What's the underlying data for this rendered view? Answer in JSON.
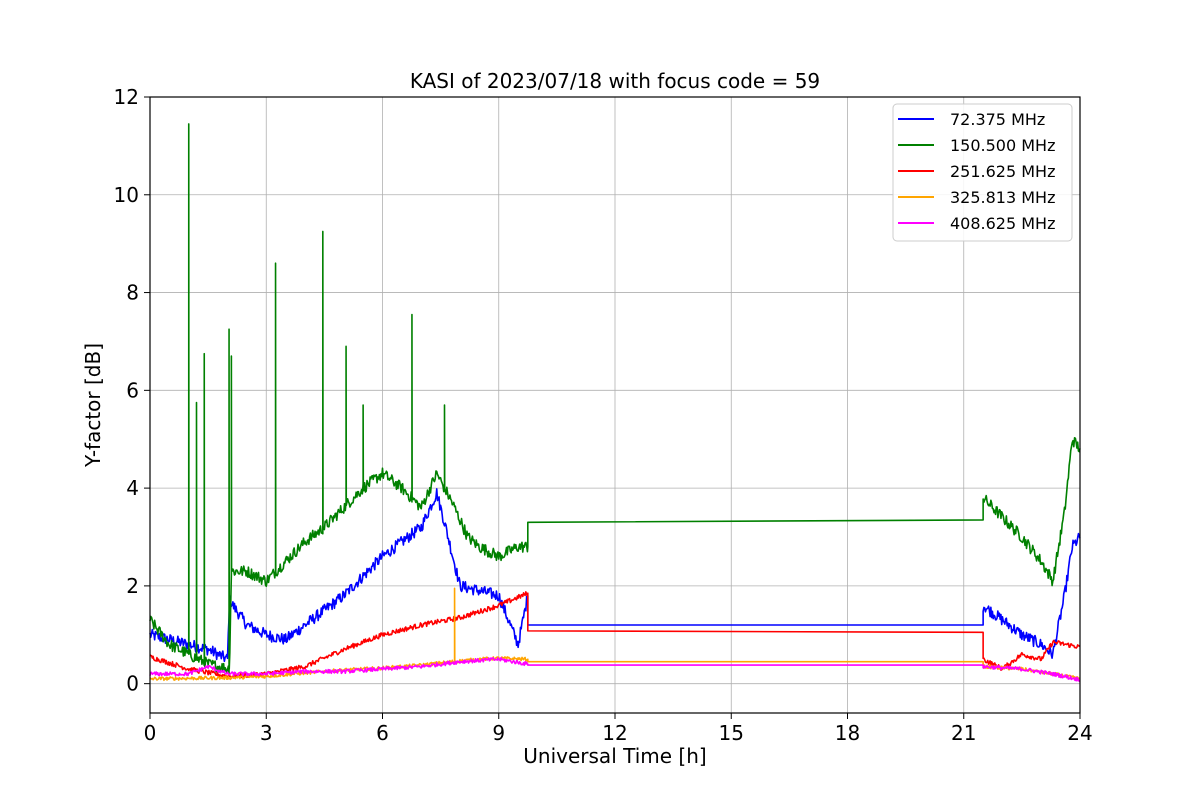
{
  "chart_data": {
    "type": "line",
    "title": "KASI of 2023/07/18 with focus code = 59",
    "xlabel": "Universal Time [h]",
    "ylabel": "Y-factor [dB]",
    "xlim": [
      0,
      24
    ],
    "ylim": [
      -0.6,
      12
    ],
    "xticks": [
      0,
      3,
      6,
      9,
      12,
      15,
      18,
      21,
      24
    ],
    "yticks": [
      0,
      2,
      4,
      6,
      8,
      10,
      12
    ],
    "grid": true,
    "legend_position": "top-right",
    "series": [
      {
        "name": " 72.375 MHz",
        "color": "#0000ff",
        "noise": 0.12,
        "gap": [
          9.75,
          21.5
        ],
        "points": [
          [
            0,
            1.0
          ],
          [
            0.5,
            0.9
          ],
          [
            1.0,
            0.8
          ],
          [
            1.5,
            0.7
          ],
          [
            2.0,
            0.5
          ],
          [
            2.05,
            1.7
          ],
          [
            2.5,
            1.2
          ],
          [
            3.0,
            1.0
          ],
          [
            3.5,
            0.9
          ],
          [
            4.0,
            1.2
          ],
          [
            4.5,
            1.5
          ],
          [
            5.0,
            1.8
          ],
          [
            5.5,
            2.2
          ],
          [
            6.0,
            2.6
          ],
          [
            6.5,
            2.9
          ],
          [
            7.0,
            3.2
          ],
          [
            7.4,
            3.9
          ],
          [
            7.6,
            3.3
          ],
          [
            8.0,
            2.0
          ],
          [
            8.5,
            1.9
          ],
          [
            9.0,
            1.8
          ],
          [
            9.5,
            0.8
          ],
          [
            9.75,
            1.8
          ],
          [
            9.75,
            1.2
          ],
          [
            21.5,
            1.2
          ],
          [
            21.5,
            1.6
          ],
          [
            22.0,
            1.3
          ],
          [
            22.5,
            1.0
          ],
          [
            23.0,
            0.8
          ],
          [
            23.3,
            0.6
          ],
          [
            23.6,
            1.8
          ],
          [
            23.8,
            2.8
          ],
          [
            24.0,
            3.0
          ]
        ]
      },
      {
        "name": "150.500 MHz",
        "color": "#008000",
        "noise": 0.12,
        "gap": [
          9.75,
          21.5
        ],
        "points": [
          [
            0,
            1.3
          ],
          [
            0.5,
            0.8
          ],
          [
            1.0,
            0.6
          ],
          [
            1.5,
            0.4
          ],
          [
            2.05,
            0.3
          ],
          [
            2.1,
            2.3
          ],
          [
            2.5,
            2.3
          ],
          [
            3.0,
            2.1
          ],
          [
            3.5,
            2.5
          ],
          [
            4.0,
            2.9
          ],
          [
            4.5,
            3.2
          ],
          [
            5.0,
            3.6
          ],
          [
            5.5,
            4.0
          ],
          [
            6.0,
            4.3
          ],
          [
            6.5,
            4.0
          ],
          [
            7.0,
            3.6
          ],
          [
            7.4,
            4.3
          ],
          [
            7.8,
            3.7
          ],
          [
            8.2,
            3.0
          ],
          [
            8.5,
            2.8
          ],
          [
            9.0,
            2.6
          ],
          [
            9.5,
            2.8
          ],
          [
            9.75,
            2.8
          ],
          [
            9.75,
            3.3
          ],
          [
            21.5,
            3.35
          ],
          [
            21.5,
            3.8
          ],
          [
            22.0,
            3.4
          ],
          [
            22.5,
            3.0
          ],
          [
            23.0,
            2.5
          ],
          [
            23.3,
            2.1
          ],
          [
            23.6,
            3.5
          ],
          [
            23.8,
            5.0
          ],
          [
            24.0,
            4.8
          ]
        ],
        "spikes": [
          [
            1.0,
            11.45
          ],
          [
            1.2,
            5.75
          ],
          [
            1.4,
            6.75
          ],
          [
            2.05,
            7.25
          ],
          [
            2.1,
            6.7
          ],
          [
            3.25,
            8.6
          ],
          [
            4.45,
            9.25
          ],
          [
            5.05,
            6.9
          ],
          [
            5.5,
            5.7
          ],
          [
            6.75,
            7.55
          ],
          [
            7.6,
            5.7
          ]
        ]
      },
      {
        "name": "251.625 MHz",
        "color": "#ff0000",
        "noise": 0.05,
        "gap": [
          9.75,
          21.5
        ],
        "points": [
          [
            0,
            0.55
          ],
          [
            1.0,
            0.3
          ],
          [
            2.0,
            0.15
          ],
          [
            3.0,
            0.2
          ],
          [
            4.0,
            0.35
          ],
          [
            5.0,
            0.7
          ],
          [
            6.0,
            1.0
          ],
          [
            7.0,
            1.2
          ],
          [
            8.0,
            1.35
          ],
          [
            9.0,
            1.6
          ],
          [
            9.75,
            1.85
          ],
          [
            9.75,
            1.08
          ],
          [
            21.5,
            1.05
          ],
          [
            21.5,
            0.5
          ],
          [
            22.0,
            0.3
          ],
          [
            22.5,
            0.6
          ],
          [
            23.0,
            0.5
          ],
          [
            23.3,
            0.85
          ],
          [
            24.0,
            0.75
          ]
        ]
      },
      {
        "name": "325.813 MHz",
        "color": "#ffa500",
        "noise": 0.035,
        "gap": [
          9.75,
          21.5
        ],
        "points": [
          [
            0,
            0.1
          ],
          [
            2.0,
            0.12
          ],
          [
            3.0,
            0.15
          ],
          [
            4.0,
            0.22
          ],
          [
            5.0,
            0.28
          ],
          [
            6.0,
            0.32
          ],
          [
            7.0,
            0.38
          ],
          [
            7.8,
            0.45
          ],
          [
            8.5,
            0.5
          ],
          [
            9.0,
            0.52
          ],
          [
            9.75,
            0.5
          ],
          [
            9.75,
            0.45
          ],
          [
            21.5,
            0.45
          ],
          [
            21.5,
            0.35
          ],
          [
            22.5,
            0.3
          ],
          [
            23.3,
            0.2
          ],
          [
            24.0,
            0.1
          ]
        ],
        "spikes": [
          [
            7.85,
            1.95
          ]
        ]
      },
      {
        "name": "408.625 MHz",
        "color": "#ff00ff",
        "noise": 0.04,
        "gap": [
          9.75,
          21.5
        ],
        "points": [
          [
            0,
            0.2
          ],
          [
            1.0,
            0.2
          ],
          [
            1.5,
            0.35
          ],
          [
            2.0,
            0.2
          ],
          [
            3.0,
            0.2
          ],
          [
            4.0,
            0.25
          ],
          [
            5.0,
            0.25
          ],
          [
            6.0,
            0.3
          ],
          [
            7.0,
            0.35
          ],
          [
            8.0,
            0.45
          ],
          [
            9.0,
            0.5
          ],
          [
            9.75,
            0.4
          ],
          [
            9.75,
            0.38
          ],
          [
            21.5,
            0.38
          ],
          [
            21.5,
            0.35
          ],
          [
            22.5,
            0.3
          ],
          [
            23.3,
            0.2
          ],
          [
            24.0,
            0.08
          ]
        ]
      }
    ]
  }
}
